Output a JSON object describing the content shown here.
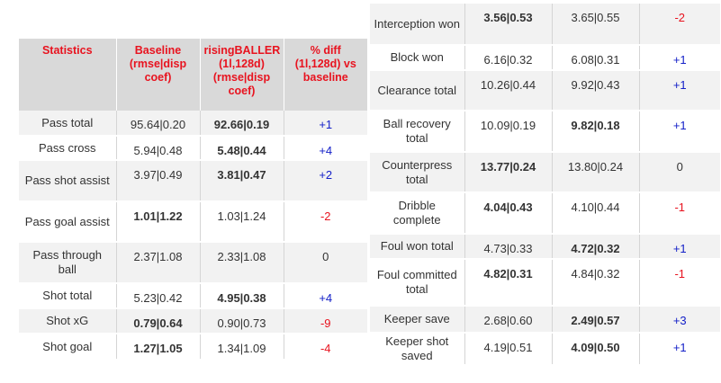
{
  "left": {
    "headers": [
      "Statistics",
      "Baseline (rmse|disp coef)",
      "risingBALLER (1l,128d) (rmse|disp coef)",
      "% diff (1l,128d) vs baseline"
    ],
    "rows": [
      {
        "metric": "Pass total",
        "baseline": "95.64|0.20",
        "rising": "92.66|0.19",
        "diff": "+1",
        "best": "rising"
      },
      {
        "metric": "Pass cross",
        "baseline": "5.94|0.48",
        "rising": "5.48|0.44",
        "diff": "+4",
        "best": "rising"
      },
      {
        "metric": "Pass shot assist",
        "baseline": "3.97|0.49",
        "rising": "3.81|0.47",
        "diff": "+2",
        "best": "rising"
      },
      {
        "metric": "Pass goal assist",
        "baseline": "1.01|1.22",
        "rising": "1.03|1.24",
        "diff": "-2",
        "best": "baseline"
      },
      {
        "metric": "Pass through ball",
        "baseline": "2.37|1.08",
        "rising": "2.33|1.08",
        "diff": "0",
        "best": "none"
      },
      {
        "metric": "Shot total",
        "baseline": "5.23|0.42",
        "rising": "4.95|0.38",
        "diff": "+4",
        "best": "rising"
      },
      {
        "metric": "Shot xG",
        "baseline": "0.79|0.64",
        "rising": "0.90|0.73",
        "diff": "-9",
        "best": "baseline"
      },
      {
        "metric": "Shot goal",
        "baseline": "1.27|1.05",
        "rising": "1.34|1.09",
        "diff": "-4",
        "best": "baseline"
      }
    ]
  },
  "right": {
    "rows": [
      {
        "metric": "Interception won",
        "baseline": "3.56|0.53",
        "rising": "3.65|0.55",
        "diff": "-2",
        "best": "baseline"
      },
      {
        "metric": "Block won",
        "baseline": "6.16|0.32",
        "rising": "6.08|0.31",
        "diff": "+1",
        "best": "none"
      },
      {
        "metric": "Clearance total",
        "baseline": "10.26|0.44",
        "rising": "9.92|0.43",
        "diff": "+1",
        "best": "none"
      },
      {
        "metric": "Ball recovery total",
        "baseline": "10.09|0.19",
        "rising": "9.82|0.18",
        "diff": "+1",
        "best": "rising"
      },
      {
        "metric": "Counterpress total",
        "baseline": "13.77|0.24",
        "rising": "13.80|0.24",
        "diff": "0",
        "best": "baseline"
      },
      {
        "metric": "Dribble complete",
        "baseline": "4.04|0.43",
        "rising": "4.10|0.44",
        "diff": "-1",
        "best": "baseline"
      },
      {
        "metric": "Foul won total",
        "baseline": "4.73|0.33",
        "rising": "4.72|0.32",
        "diff": "+1",
        "best": "rising"
      },
      {
        "metric": "Foul committed total",
        "baseline": "4.82|0.31",
        "rising": "4.84|0.32",
        "diff": "-1",
        "best": "baseline"
      },
      {
        "metric": "Keeper save",
        "baseline": "2.68|0.60",
        "rising": "2.49|0.57",
        "diff": "+3",
        "best": "rising"
      },
      {
        "metric": "Keeper shot saved",
        "baseline": "4.19|0.51",
        "rising": "4.09|0.50",
        "diff": "+1",
        "best": "rising"
      }
    ]
  }
}
